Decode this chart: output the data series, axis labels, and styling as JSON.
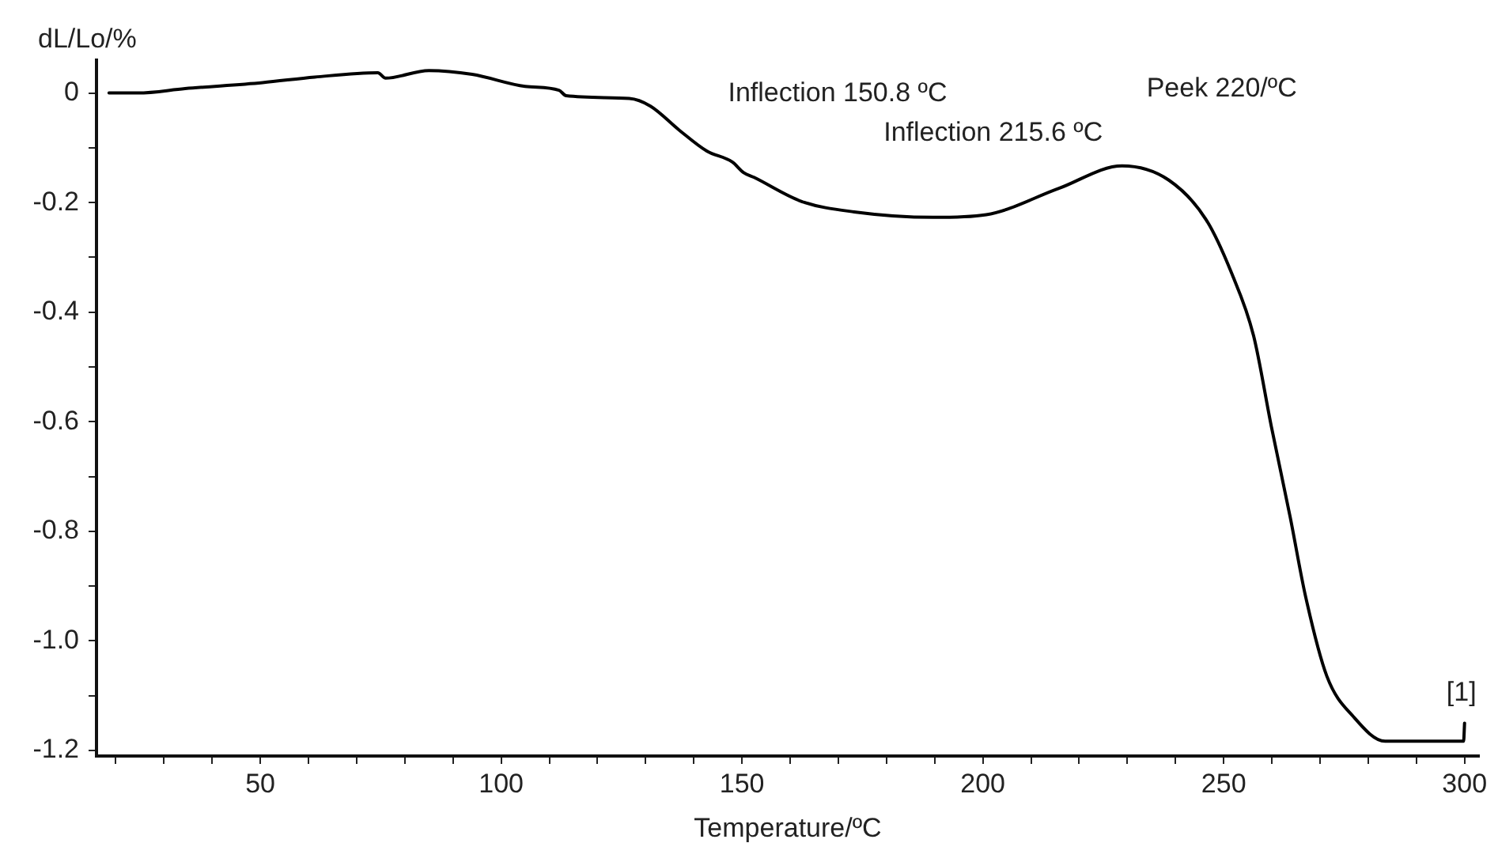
{
  "chart_data": {
    "type": "line",
    "xlabel": "Temperature/ºC",
    "ylabel": "dL/Lo/%",
    "xlim": [
      16,
      303
    ],
    "ylim": [
      -1.21,
      0.06
    ],
    "xticks": [
      {
        "value": 20,
        "label": null
      },
      {
        "value": 30,
        "label": null
      },
      {
        "value": 40,
        "label": null
      },
      50,
      {
        "value": 60,
        "label": null
      },
      {
        "value": 70,
        "label": null
      },
      {
        "value": 80,
        "label": null
      },
      {
        "value": 90,
        "label": null
      },
      100,
      {
        "value": 110,
        "label": null
      },
      {
        "value": 120,
        "label": null
      },
      {
        "value": 130,
        "label": null
      },
      {
        "value": 140,
        "label": null
      },
      150,
      {
        "value": 160,
        "label": null
      },
      {
        "value": 170,
        "label": null
      },
      {
        "value": 180,
        "label": null
      },
      {
        "value": 190,
        "label": null
      },
      200,
      {
        "value": 210,
        "label": null
      },
      {
        "value": 220,
        "label": null
      },
      {
        "value": 230,
        "label": null
      },
      {
        "value": 240,
        "label": null
      },
      250,
      {
        "value": 260,
        "label": null
      },
      {
        "value": 270,
        "label": null
      },
      {
        "value": 280,
        "label": null
      },
      {
        "value": 290,
        "label": null
      },
      300
    ],
    "yticks": [
      0,
      {
        "value": -0.1,
        "label": null
      },
      -0.2,
      {
        "value": -0.3,
        "label": null
      },
      -0.4,
      {
        "value": -0.5,
        "label": null
      },
      -0.6,
      {
        "value": -0.7,
        "label": null
      },
      -0.8,
      {
        "value": -0.9,
        "label": null
      },
      {
        "value": -1,
        "label": "-1.0"
      },
      {
        "value": -1.1,
        "label": null
      },
      -1.2
    ],
    "grid": false,
    "legend": false,
    "series": [
      {
        "color": "#000000",
        "x": [
          18.6,
          24.6,
          34.4,
          50.5,
          61.3,
          74.4,
          76,
          85,
          94,
          105,
          112,
          113.5,
          126.6,
          131,
          137,
          142.7,
          148,
          150.3,
          152.5,
          162.4,
          173.3,
          189.7,
          200.7,
          215.8,
          228.9,
          238.6,
          246.4,
          251.6,
          256.2,
          259.9,
          263.8,
          267,
          271.4,
          277,
          283.5,
          299.8,
          300
        ],
        "values": [
          0,
          0,
          0.008,
          0.019,
          0.029,
          0.037,
          0.027,
          0.041,
          0.034,
          0.012,
          0.005,
          -0.005,
          -0.01,
          -0.024,
          -0.068,
          -0.106,
          -0.126,
          -0.145,
          -0.154,
          -0.198,
          -0.217,
          -0.227,
          -0.222,
          -0.174,
          -0.133,
          -0.159,
          -0.232,
          -0.328,
          -0.443,
          -0.609,
          -0.774,
          -0.919,
          -1.064,
          -1.139,
          -1.183,
          -1.183,
          -1.15
        ]
      }
    ],
    "annotations": [
      {
        "text": "Inflection 150.8 ºC",
        "x": 150.8,
        "y": -0.145
      },
      {
        "text": "Inflection 215.6 ºC",
        "x": 215.6,
        "y": -0.174
      },
      {
        "text": "Peek 220/ºC",
        "x": 228.9,
        "y": -0.133
      },
      {
        "text": "[1]",
        "x": 300,
        "y": -1.15
      }
    ]
  }
}
